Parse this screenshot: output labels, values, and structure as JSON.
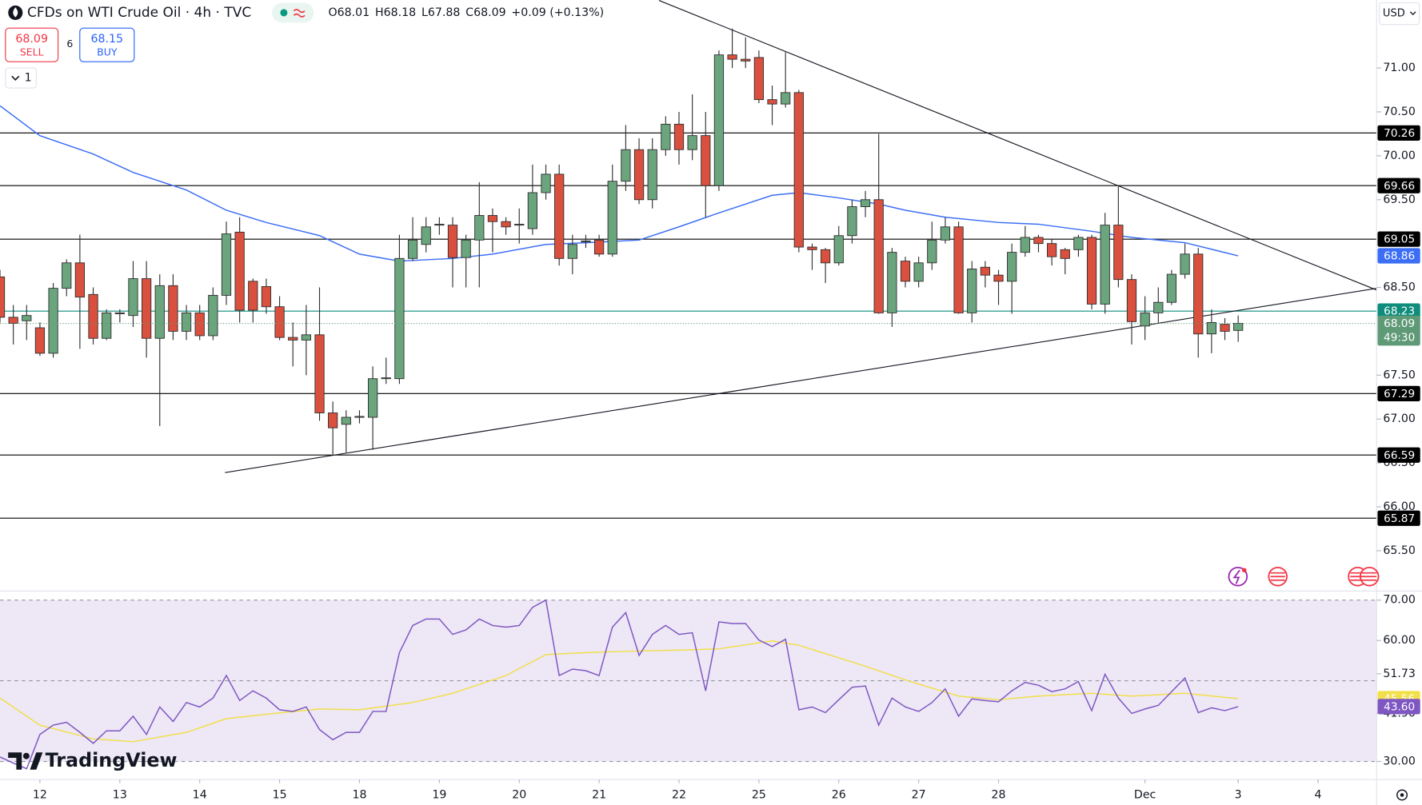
{
  "header": {
    "symbol": "CFDs on WTI Crude Oil · 4h · TVC",
    "keys": [
      "O",
      "H",
      "L",
      "C"
    ],
    "change": "+0.09 (+0.13%)"
  },
  "trade": {
    "sell_price": "68.09",
    "sell": "SELL",
    "spread": "6",
    "buy_price": "68.15",
    "buy": "BUY"
  },
  "interval_menu": "1",
  "currency": "USD",
  "logo": "TradingView",
  "chart_data": [
    {
      "type": "candlestick",
      "title": "CFDs on WTI Crude Oil · 4h · TVC",
      "open": [
        68.62,
        68.16,
        68.12,
        68.04,
        67.75,
        68.49,
        68.78,
        68.42,
        67.92,
        68.2,
        68.18,
        68.6,
        67.92,
        68.52,
        68.0,
        68.21,
        67.95,
        68.41,
        69.13,
        68.57,
        68.51,
        68.28,
        67.93,
        67.9,
        67.96,
        67.07,
        66.94,
        67.02,
        67.02,
        67.46,
        67.46,
        68.83,
        68.99,
        69.21,
        69.21,
        68.84,
        69.04,
        69.32,
        69.25,
        69.21,
        69.17,
        69.58,
        69.79,
        68.83,
        69.02,
        69.04,
        68.88,
        69.71,
        70.07,
        69.5,
        70.07,
        70.36,
        70.07,
        70.23,
        69.66,
        71.15,
        71.1,
        71.12,
        70.64,
        70.59,
        70.72,
        68.96,
        68.93,
        68.78,
        69.09,
        69.42,
        69.5,
        68.21,
        68.8,
        68.57,
        68.78,
        69.04,
        69.19,
        68.21,
        68.73,
        68.64,
        68.57,
        68.9,
        69.07,
        69.0,
        68.93,
        68.93,
        69.07,
        68.31,
        69.21,
        68.59,
        68.06,
        68.21,
        68.33,
        68.65,
        68.88,
        67.97,
        68.08,
        68.01
      ],
      "high": [
        68.7,
        68.3,
        68.3,
        68.1,
        68.55,
        68.82,
        69.1,
        68.5,
        68.25,
        68.25,
        68.8,
        68.8,
        68.65,
        68.65,
        68.3,
        68.3,
        68.5,
        69.25,
        69.3,
        68.6,
        68.6,
        68.4,
        68.1,
        68.3,
        68.5,
        67.2,
        67.1,
        67.1,
        67.6,
        67.7,
        69.1,
        69.3,
        69.3,
        69.3,
        69.3,
        69.1,
        69.7,
        69.4,
        69.3,
        69.4,
        69.9,
        69.9,
        69.9,
        69.1,
        69.1,
        69.1,
        69.9,
        70.35,
        70.2,
        70.2,
        70.45,
        70.5,
        70.7,
        70.5,
        71.2,
        71.45,
        71.35,
        71.2,
        70.8,
        71.18,
        70.75,
        69.0,
        68.95,
        69.2,
        69.5,
        69.6,
        70.25,
        68.95,
        68.85,
        68.85,
        69.25,
        69.3,
        69.25,
        68.8,
        68.8,
        68.7,
        69.0,
        69.2,
        69.1,
        69.05,
        68.95,
        69.1,
        69.1,
        69.35,
        69.65,
        68.65,
        68.4,
        68.5,
        68.7,
        69.0,
        68.95,
        68.25,
        68.15,
        68.18
      ],
      "low": [
        68.1,
        67.85,
        67.9,
        67.72,
        67.7,
        68.4,
        67.8,
        67.85,
        67.9,
        68.1,
        68.05,
        67.7,
        66.92,
        67.9,
        67.9,
        67.9,
        67.9,
        68.3,
        68.1,
        68.1,
        68.2,
        67.9,
        67.6,
        67.5,
        66.98,
        66.6,
        66.62,
        66.95,
        66.65,
        67.4,
        67.4,
        68.8,
        68.9,
        69.1,
        68.5,
        68.5,
        68.5,
        68.9,
        69.1,
        69.0,
        69.1,
        69.5,
        68.75,
        68.65,
        68.95,
        68.85,
        68.85,
        69.6,
        69.45,
        69.4,
        70.0,
        69.9,
        69.95,
        69.3,
        69.6,
        71.0,
        71.0,
        70.6,
        70.35,
        70.55,
        68.9,
        68.7,
        68.55,
        68.75,
        69.0,
        69.3,
        68.2,
        68.05,
        68.5,
        68.5,
        68.7,
        69.0,
        68.2,
        68.1,
        68.5,
        68.3,
        68.2,
        68.85,
        68.9,
        68.75,
        68.65,
        68.85,
        68.25,
        68.2,
        68.5,
        67.85,
        67.9,
        68.1,
        68.3,
        68.6,
        67.7,
        67.75,
        67.9,
        67.88
      ],
      "close": [
        68.16,
        68.09,
        68.18,
        67.75,
        68.49,
        68.78,
        68.39,
        67.92,
        68.21,
        68.21,
        68.6,
        67.92,
        68.52,
        68.0,
        68.21,
        67.95,
        68.41,
        69.11,
        68.24,
        68.24,
        68.28,
        67.93,
        67.9,
        67.96,
        67.07,
        66.9,
        67.02,
        67.03,
        67.46,
        67.47,
        68.83,
        69.04,
        69.19,
        69.22,
        68.84,
        69.04,
        69.32,
        69.25,
        69.19,
        69.22,
        69.58,
        69.79,
        68.83,
        68.99,
        69.03,
        68.88,
        69.71,
        70.07,
        69.5,
        70.07,
        70.36,
        70.07,
        70.23,
        69.66,
        71.15,
        71.1,
        71.08,
        70.64,
        70.59,
        70.72,
        68.96,
        68.93,
        68.78,
        69.09,
        69.42,
        69.5,
        68.21,
        68.9,
        68.57,
        68.78,
        69.04,
        69.19,
        68.21,
        68.71,
        68.64,
        68.57,
        68.9,
        69.07,
        69.0,
        68.85,
        68.83,
        69.07,
        68.31,
        69.21,
        68.59,
        68.11,
        68.21,
        68.33,
        68.65,
        68.88,
        67.97,
        68.1,
        68.0,
        68.09
      ],
      "up_color": "#6aa57e",
      "down_color": "#d9503f",
      "border_color": "#2f2f2f",
      "countdown": "49:30",
      "last_color": "#5f9a77",
      "overlays": [
        {
          "color": "#3b6ef5",
          "x": [
            0,
            3,
            7,
            10,
            14,
            17,
            20,
            24,
            27,
            30,
            34,
            37,
            41,
            44,
            48,
            51,
            54,
            58,
            60,
            63,
            66,
            68,
            71,
            75,
            78,
            82,
            85,
            89,
            93
          ],
          "values": [
            70.57,
            70.23,
            70.02,
            69.81,
            69.61,
            69.38,
            69.24,
            69.09,
            68.88,
            68.8,
            68.83,
            68.88,
            68.99,
            69.01,
            69.04,
            69.19,
            69.35,
            69.55,
            69.58,
            69.52,
            69.45,
            69.38,
            69.3,
            69.24,
            69.22,
            69.14,
            69.07,
            69.01,
            68.86
          ]
        }
      ],
      "levels": [
        {
          "value": 70.26,
          "color": "#000000"
        },
        {
          "value": 69.66,
          "color": "#000000"
        },
        {
          "value": 69.05,
          "color": "#000000"
        },
        {
          "value": 68.23,
          "color": "#0e8c7c"
        },
        {
          "value": 67.29,
          "color": "#000000"
        },
        {
          "value": 66.59,
          "color": "#000000"
        },
        {
          "value": 65.87,
          "color": "#000000"
        }
      ],
      "trendlines": [
        {
          "x": [
            49.5,
            103.4
          ],
          "y": [
            71.77,
            68.47
          ]
        },
        {
          "x": [
            16.9,
            103.4
          ],
          "y": [
            66.39,
            68.49
          ]
        }
      ],
      "xlim": [
        0,
        103.4
      ],
      "ylim": [
        65.04,
        71.775
      ],
      "yticks": [
        {
          "value": 71,
          "label": "71.00"
        },
        {
          "value": 70.5,
          "label": "70.50"
        },
        {
          "value": 70,
          "label": "70.00"
        },
        {
          "value": 69.5,
          "label": "69.50"
        },
        {
          "value": 68.5,
          "label": "68.50"
        },
        {
          "value": 67.5,
          "label": "67.50"
        },
        {
          "value": 67,
          "label": "67.00"
        },
        {
          "value": 66.5,
          "label": "66.50"
        },
        {
          "value": 66,
          "label": "66.00"
        },
        {
          "value": 65.5,
          "label": "65.50"
        }
      ]
    },
    {
      "type": "line",
      "series": [
        {
          "color": "#f2df4a",
          "x": [
            0,
            3,
            7,
            10,
            14,
            17,
            20,
            24,
            27,
            31,
            34,
            38,
            41,
            44,
            48,
            51,
            54,
            58,
            60,
            65,
            68,
            72,
            75,
            78,
            82,
            85,
            89,
            93
          ],
          "values": [
            45.7,
            39.0,
            35.6,
            34.9,
            37.2,
            40.6,
            41.7,
            43.0,
            42.8,
            44.6,
            46.9,
            51.3,
            56.5,
            57.0,
            57.4,
            57.6,
            57.9,
            59.9,
            58.8,
            53.6,
            50.2,
            46.2,
            45.3,
            46.2,
            46.9,
            46.2,
            46.9,
            45.56
          ]
        },
        {
          "color": "#7e57c2",
          "values": [
            31.1,
            29.6,
            28.2,
            36.7,
            39.0,
            39.7,
            37.2,
            34.5,
            37.6,
            37.6,
            41.2,
            36.7,
            43.5,
            39.9,
            44.6,
            43.5,
            45.7,
            51.3,
            45.1,
            47.5,
            45.7,
            42.8,
            42.4,
            43.5,
            37.9,
            35.4,
            37.2,
            37.2,
            42.4,
            42.4,
            57.0,
            63.7,
            65.3,
            65.3,
            61.5,
            62.6,
            65.3,
            63.7,
            63.3,
            63.7,
            68.2,
            70.0,
            51.3,
            52.9,
            52.5,
            51.3,
            63.3,
            66.9,
            56.3,
            61.5,
            63.7,
            61.5,
            61.9,
            47.5,
            64.6,
            64.2,
            64.2,
            60.1,
            58.5,
            60.3,
            42.8,
            43.5,
            42.1,
            45.3,
            48.4,
            48.7,
            39.0,
            45.7,
            43.5,
            42.4,
            44.6,
            48.0,
            41.2,
            45.5,
            45.1,
            44.8,
            47.5,
            49.6,
            48.9,
            47.3,
            48.0,
            49.8,
            42.6,
            51.6,
            45.7,
            41.9,
            43.0,
            43.9,
            47.3,
            50.7,
            42.1,
            43.3,
            42.6,
            43.6
          ],
          "last_label": "43.60"
        }
      ],
      "dashed_levels": [
        70,
        50,
        30
      ],
      "band_color": "#ede7f6",
      "xlim": [
        0,
        103.4
      ],
      "ylim": [
        25.5,
        72.25
      ],
      "yticks": [
        {
          "value": 70,
          "label": "70.00"
        },
        {
          "value": 60,
          "label": "60.00"
        },
        51.73,
        {
          "value": 41.9,
          "label": "41.90"
        },
        {
          "value": 30,
          "label": "30.00"
        }
      ],
      "xticks": [
        {
          "value": 3,
          "label": "12"
        },
        {
          "value": 9,
          "label": "13"
        },
        {
          "value": 15,
          "label": "14"
        },
        {
          "value": 21,
          "label": "15"
        },
        {
          "value": 27,
          "label": "18"
        },
        {
          "value": 33,
          "label": "19"
        },
        {
          "value": 39,
          "label": "20"
        },
        {
          "value": 45,
          "label": "21"
        },
        {
          "value": 51,
          "label": "22"
        },
        {
          "value": 57,
          "label": "25"
        },
        {
          "value": 63,
          "label": "26"
        },
        {
          "value": 69,
          "label": "27"
        },
        {
          "value": 75,
          "label": "28"
        },
        {
          "value": 86,
          "label": "Dec"
        },
        {
          "value": 93,
          "label": "3"
        },
        {
          "value": 99,
          "label": "4"
        }
      ]
    }
  ]
}
